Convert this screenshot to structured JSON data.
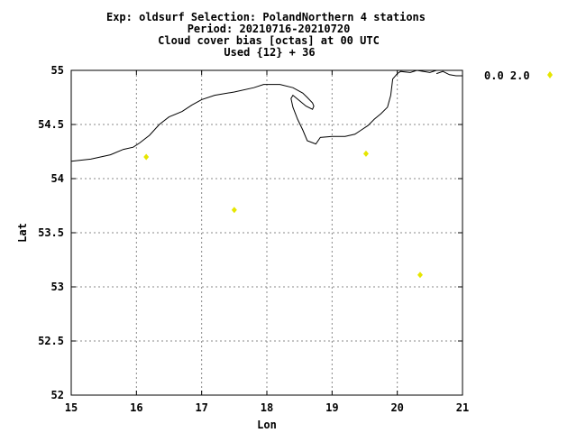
{
  "header": {
    "line1": "Exp: oldsurf   Selection: PolandNorthern      4 stations",
    "line2": "Period: 20210716-20210720",
    "line3": "Cloud cover bias [octas] at  00 UTC",
    "line4": "Used {12} + 36"
  },
  "legend": {
    "label": "0.0 2.0",
    "marker_color": "#e6e600"
  },
  "chart_data": {
    "type": "scatter",
    "title": "Cloud cover bias [octas] at  00 UTC",
    "xlabel": "Lon",
    "ylabel": "Lat",
    "xlim": [
      15,
      21
    ],
    "ylim": [
      52,
      55
    ],
    "x_ticks": [
      "15",
      "16",
      "17",
      "18",
      "19",
      "20",
      "21"
    ],
    "y_ticks": [
      "52",
      "52.5",
      "53",
      "53.5",
      "54",
      "54.5",
      "55"
    ],
    "grid": true,
    "legend_position": "top-right outside",
    "series": [
      {
        "name": "0.0 2.0",
        "color": "#e6e600",
        "points": [
          {
            "x": 16.15,
            "y": 54.2
          },
          {
            "x": 17.5,
            "y": 53.71
          },
          {
            "x": 19.52,
            "y": 54.23
          },
          {
            "x": 20.35,
            "y": 53.11
          }
        ]
      }
    ],
    "coastline": [
      [
        [
          15.0,
          54.16
        ],
        [
          15.3,
          54.18
        ],
        [
          15.6,
          54.22
        ],
        [
          15.8,
          54.27
        ],
        [
          15.95,
          54.29
        ],
        [
          16.05,
          54.33
        ],
        [
          16.2,
          54.4
        ],
        [
          16.35,
          54.5
        ],
        [
          16.5,
          54.57
        ],
        [
          16.7,
          54.62
        ],
        [
          16.85,
          54.68
        ],
        [
          17.0,
          54.73
        ],
        [
          17.2,
          54.77
        ],
        [
          17.5,
          54.8
        ],
        [
          17.8,
          54.84
        ],
        [
          17.95,
          54.87
        ],
        [
          18.2,
          54.87
        ],
        [
          18.4,
          54.84
        ],
        [
          18.55,
          54.79
        ],
        [
          18.62,
          54.75
        ],
        [
          18.7,
          54.7
        ],
        [
          18.72,
          54.67
        ],
        [
          18.7,
          54.64
        ],
        [
          18.6,
          54.67
        ],
        [
          18.5,
          54.72
        ],
        [
          18.4,
          54.77
        ],
        [
          18.37,
          54.74
        ],
        [
          18.4,
          54.66
        ],
        [
          18.47,
          54.55
        ],
        [
          18.55,
          54.45
        ],
        [
          18.62,
          54.35
        ],
        [
          18.75,
          54.32
        ],
        [
          18.82,
          54.38
        ],
        [
          19.0,
          54.39
        ],
        [
          19.2,
          54.39
        ],
        [
          19.35,
          54.41
        ],
        [
          19.45,
          54.45
        ],
        [
          19.55,
          54.49
        ],
        [
          19.65,
          54.55
        ],
        [
          19.75,
          54.6
        ],
        [
          19.85,
          54.66
        ],
        [
          19.9,
          54.77
        ],
        [
          19.93,
          54.92
        ],
        [
          20.0,
          54.97
        ],
        [
          20.05,
          54.99
        ],
        [
          20.2,
          54.98
        ],
        [
          20.3,
          55.0
        ],
        [
          20.5,
          54.98
        ],
        [
          20.6,
          55.0
        ]
      ],
      [
        [
          20.6,
          54.97
        ],
        [
          20.7,
          54.99
        ],
        [
          20.8,
          54.96
        ],
        [
          20.9,
          54.95
        ],
        [
          21.0,
          54.95
        ]
      ]
    ]
  }
}
